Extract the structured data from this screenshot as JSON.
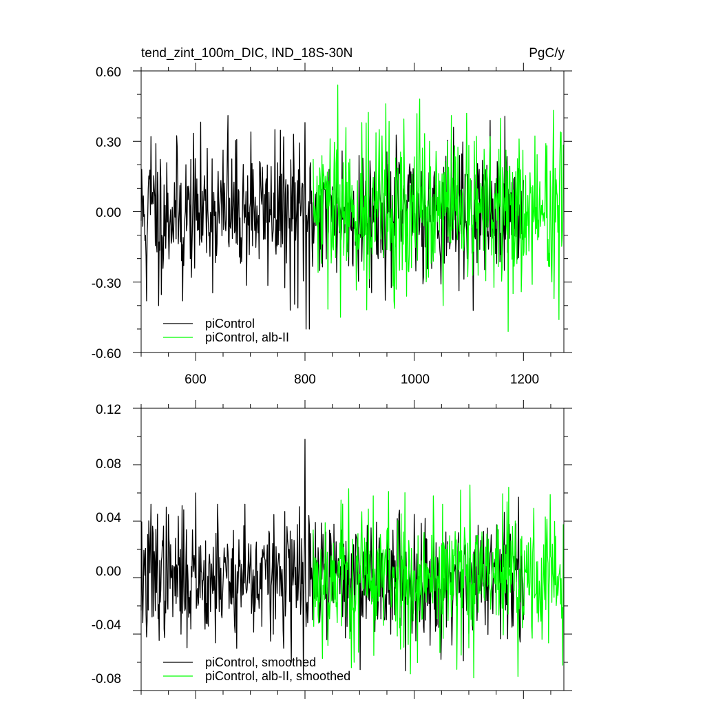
{
  "header": {
    "title": "tend_zint_100m_DIC, IND_18S-30N",
    "units": "PgC/y"
  },
  "colors": {
    "piControl": "#000000",
    "albII": "#00ff00",
    "axis": "#000000"
  },
  "chart_data": [
    {
      "type": "line",
      "panel": "top",
      "xlim": [
        500,
        1274
      ],
      "ylim": [
        -0.6,
        0.6
      ],
      "y_ticks": [
        "0.60",
        "0.30",
        "0.00",
        "-0.30",
        "-0.60"
      ],
      "x_ticks": [
        "600",
        "800",
        "1000",
        "1200"
      ],
      "grid": false,
      "legend_position": "bottom-left",
      "series": [
        {
          "name": "piControl",
          "color": "#000000",
          "x_range": [
            500,
            1200
          ],
          "std": 0.14,
          "seed": 11,
          "peaks": [
            [
              505,
              -0.02
            ],
            [
              510,
              -0.38
            ],
            [
              518,
              0.32
            ],
            [
              527,
              0.29
            ],
            [
              532,
              -0.4
            ],
            [
              576,
              -0.38
            ],
            [
              621,
              0.27
            ],
            [
              659,
              0.41
            ],
            [
              661,
              -0.15
            ],
            [
              701,
              0.34
            ],
            [
              745,
              0.35
            ],
            [
              773,
              -0.42
            ],
            [
              779,
              0.33
            ],
            [
              787,
              -0.41
            ],
            [
              800,
              0.38
            ],
            [
              802,
              -0.5
            ],
            [
              808,
              -0.5
            ]
          ]
        },
        {
          "name": "piControl, alb-II",
          "color": "#00ff00",
          "x_range": [
            815,
            1273
          ],
          "std": 0.16,
          "seed": 29,
          "peaks": [
            [
              860,
              0.54
            ],
            [
              865,
              -0.45
            ],
            [
              904,
              0.38
            ],
            [
              936,
              0.35
            ],
            [
              948,
              0.46
            ],
            [
              963,
              -0.38
            ],
            [
              986,
              -0.36
            ],
            [
              1010,
              0.48
            ],
            [
              1028,
              0.3
            ],
            [
              1053,
              -0.4
            ],
            [
              1068,
              0.41
            ],
            [
              1139,
              0.32
            ],
            [
              1172,
              -0.51
            ],
            [
              1192,
              0.31
            ],
            [
              1216,
              -0.31
            ],
            [
              1241,
              0.29
            ],
            [
              1256,
              -0.37
            ],
            [
              1265,
              -0.46
            ],
            [
              1268,
              0.34
            ]
          ]
        }
      ]
    },
    {
      "type": "line",
      "panel": "bottom",
      "xlim": [
        500,
        1274
      ],
      "ylim": [
        -0.08,
        0.12
      ],
      "y_ticks": [
        "0.12",
        "0.08",
        "0.04",
        "0.00",
        "-0.04",
        "-0.08"
      ],
      "grid": false,
      "legend_position": "bottom-left",
      "series": [
        {
          "name": "piControl, smoothed",
          "color": "#000000",
          "x_range": [
            500,
            1200
          ],
          "std": 0.021,
          "seed": 37,
          "peaks": [
            [
              510,
              -0.042
            ],
            [
              518,
              0.052
            ],
            [
              530,
              0.045
            ],
            [
              546,
              0.05
            ],
            [
              600,
              0.06
            ],
            [
              640,
              0.052
            ],
            [
              690,
              0.052
            ],
            [
              775,
              -0.06
            ],
            [
              800,
              0.098
            ],
            [
              797,
              -0.068
            ],
            [
              805,
              -0.032
            ],
            [
              984,
              -0.066
            ],
            [
              1049,
              -0.058
            ],
            [
              1191,
              0.057
            ]
          ]
        },
        {
          "name": "piControl, alb-II, smoothed",
          "color": "#00ff00",
          "x_range": [
            815,
            1273
          ],
          "std": 0.024,
          "seed": 53,
          "peaks": [
            [
              866,
              0.055
            ],
            [
              880,
              0.063
            ],
            [
              890,
              -0.06
            ],
            [
              925,
              0.058
            ],
            [
              953,
              0.061
            ],
            [
              1035,
              0.058
            ],
            [
              1052,
              0.052
            ],
            [
              1078,
              -0.065
            ],
            [
              1085,
              0.062
            ],
            [
              1109,
              -0.071
            ],
            [
              1173,
              0.064
            ],
            [
              1190,
              -0.07
            ],
            [
              1240,
              0.043
            ],
            [
              1272,
              -0.062
            ]
          ]
        }
      ]
    }
  ]
}
